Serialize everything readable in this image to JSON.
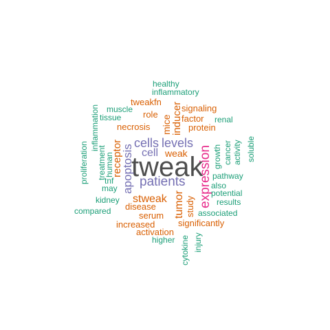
{
  "colors": {
    "big": "#4d4d4d",
    "purple": "#7570b3",
    "magenta": "#e7298a",
    "orange": "#d95f02",
    "green": "#1b9e77"
  },
  "words": [
    {
      "text": "tweak",
      "color": "big"
    },
    {
      "text": "expression",
      "color": "magenta"
    },
    {
      "text": "patients",
      "color": "purple"
    },
    {
      "text": "levels",
      "color": "purple"
    },
    {
      "text": "cells",
      "color": "purple"
    },
    {
      "text": "cell",
      "color": "purple"
    },
    {
      "text": "apoptosis",
      "color": "purple"
    },
    {
      "text": "stweak",
      "color": "orange"
    },
    {
      "text": "tumor",
      "color": "orange"
    },
    {
      "text": "weak",
      "color": "orange"
    },
    {
      "text": "receptor",
      "color": "orange"
    },
    {
      "text": "inducer",
      "color": "orange"
    },
    {
      "text": "mice",
      "color": "orange"
    },
    {
      "text": "necrosis",
      "color": "orange"
    },
    {
      "text": "tweakfn",
      "color": "orange"
    },
    {
      "text": "role",
      "color": "orange"
    },
    {
      "text": "signaling",
      "color": "orange"
    },
    {
      "text": "factor",
      "color": "orange"
    },
    {
      "text": "protein",
      "color": "orange"
    },
    {
      "text": "disease",
      "color": "orange"
    },
    {
      "text": "serum",
      "color": "orange"
    },
    {
      "text": "increased",
      "color": "orange"
    },
    {
      "text": "study",
      "color": "orange"
    },
    {
      "text": "significantly",
      "color": "orange"
    },
    {
      "text": "activation",
      "color": "orange"
    },
    {
      "text": "healthy",
      "color": "green"
    },
    {
      "text": "inflammatory",
      "color": "green"
    },
    {
      "text": "muscle",
      "color": "green"
    },
    {
      "text": "tissue",
      "color": "green"
    },
    {
      "text": "inflammation",
      "color": "green"
    },
    {
      "text": "renal",
      "color": "green"
    },
    {
      "text": "cancer",
      "color": "green"
    },
    {
      "text": "activity",
      "color": "green"
    },
    {
      "text": "soluble",
      "color": "green"
    },
    {
      "text": "growth",
      "color": "green"
    },
    {
      "text": "pathway",
      "color": "green"
    },
    {
      "text": "also",
      "color": "green"
    },
    {
      "text": "potential",
      "color": "green"
    },
    {
      "text": "results",
      "color": "green"
    },
    {
      "text": "associated",
      "color": "green"
    },
    {
      "text": "proliferation",
      "color": "green"
    },
    {
      "text": "treatment",
      "color": "green"
    },
    {
      "text": "human",
      "color": "green"
    },
    {
      "text": "tnf",
      "color": "green"
    },
    {
      "text": "may",
      "color": "green"
    },
    {
      "text": "kidney",
      "color": "green"
    },
    {
      "text": "compared",
      "color": "green"
    },
    {
      "text": "higher",
      "color": "green"
    },
    {
      "text": "cytokine",
      "color": "green"
    },
    {
      "text": "injury",
      "color": "green"
    }
  ]
}
